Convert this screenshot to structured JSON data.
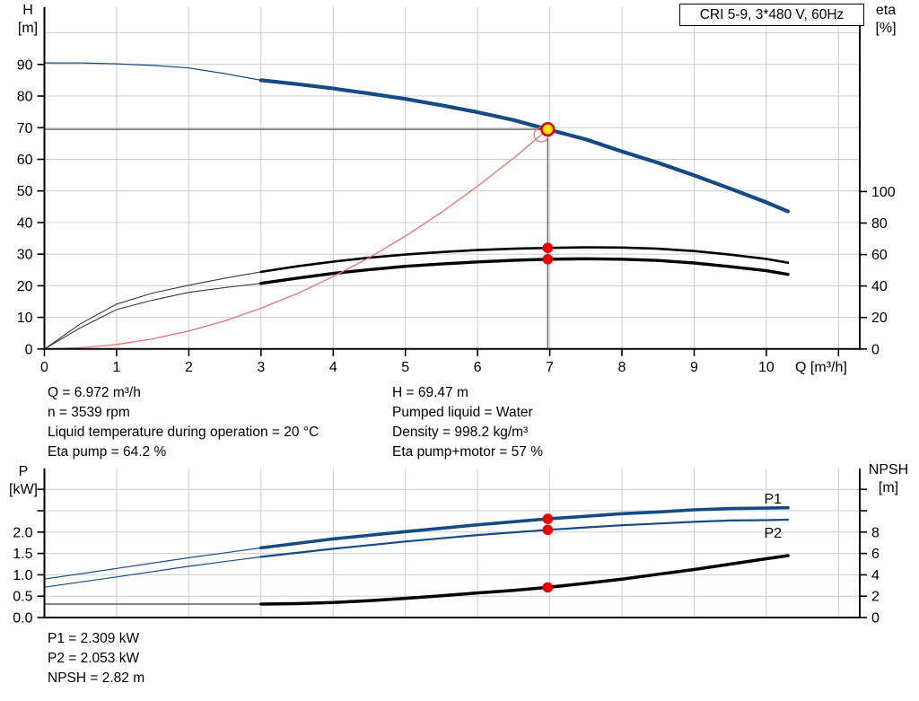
{
  "title_box": "CRI 5-9, 3*480 V, 60Hz",
  "palette": {
    "curve_blue": "#154a82",
    "curve_black": "#000000",
    "thin_dark": "#3a3a3a",
    "system_red": "#e87070",
    "duty_red": "#e00000",
    "duty_yellow": "#ffe600",
    "dot_red": "#ee0000",
    "grid": "#cccccc",
    "axis": "#000000",
    "duty_line": "#4d4d4d"
  },
  "annotations": {
    "top_left": [
      "Q = 6.972 m³/h",
      "n = 3539 rpm",
      "Liquid temperature during operation = 20 °C",
      "Eta pump = 64.2 %"
    ],
    "top_right": [
      "H = 69.47 m",
      "Pumped liquid = Water",
      "Density = 998.2 kg/m³",
      "Eta pump+motor = 57 %"
    ],
    "bottom": [
      "P1 = 2.309 kW",
      "P2 = 2.053 kW",
      "NPSH = 2.82 m"
    ]
  },
  "chart_data": [
    {
      "id": "hq-eta-chart",
      "type": "line",
      "title": "CRI 5-9, 3*480 V, 60Hz",
      "x_axis": {
        "label": "Q [m³/h]",
        "range": [
          0,
          11.3
        ],
        "ticks": [
          {
            "v": 0,
            "label": "0"
          },
          {
            "v": 1,
            "label": "1"
          },
          {
            "v": 2,
            "label": "2"
          },
          {
            "v": 3,
            "label": "3"
          },
          {
            "v": 4,
            "label": "4"
          },
          {
            "v": 5,
            "label": "5"
          },
          {
            "v": 6,
            "label": "6"
          },
          {
            "v": 7,
            "label": "7"
          },
          {
            "v": 8,
            "label": "8"
          },
          {
            "v": 9,
            "label": "9"
          },
          {
            "v": 10,
            "label": "10"
          },
          {
            "v": 11,
            "label": ""
          }
        ]
      },
      "y_left": {
        "axis": "H",
        "label": [
          "H",
          "[m]"
        ],
        "range": [
          0,
          108
        ],
        "ticks": [
          {
            "v": 0,
            "label": "0"
          },
          {
            "v": 10,
            "label": "10"
          },
          {
            "v": 20,
            "label": "20"
          },
          {
            "v": 30,
            "label": "30"
          },
          {
            "v": 40,
            "label": "40"
          },
          {
            "v": 50,
            "label": "50"
          },
          {
            "v": 60,
            "label": "60"
          },
          {
            "v": 70,
            "label": "70"
          },
          {
            "v": 80,
            "label": "80"
          },
          {
            "v": 90,
            "label": "90"
          }
        ]
      },
      "y_right": {
        "axis": "eta",
        "label": [
          "eta",
          "[%]"
        ],
        "range": [
          0,
          217
        ],
        "ticks": [
          {
            "v": 0,
            "label": "0"
          },
          {
            "v": 20,
            "label": "20"
          },
          {
            "v": 40,
            "label": "40"
          },
          {
            "v": 60,
            "label": "60"
          },
          {
            "v": 80,
            "label": "80"
          },
          {
            "v": 100,
            "label": "100"
          }
        ]
      },
      "grid_x": [
        1,
        2,
        3,
        4,
        5,
        6,
        7,
        8,
        9,
        10,
        11
      ],
      "grid_y": {
        "axis": "H",
        "values": [
          10,
          20,
          30,
          40,
          50,
          60,
          70,
          80,
          90,
          100
        ]
      },
      "duty_point_lines": {
        "q": 6.972,
        "h": 69.47
      },
      "series": [
        {
          "name": "head-curve-thin",
          "axis": "H",
          "color": "curve_blue",
          "width": 1.2,
          "points": [
            [
              0,
              90.5
            ],
            [
              0.5,
              90.5
            ],
            [
              1,
              90.2
            ],
            [
              1.5,
              89.7
            ],
            [
              2,
              88.9
            ],
            [
              2.5,
              87.1
            ],
            [
              3,
              85.0
            ]
          ]
        },
        {
          "name": "head-curve",
          "axis": "H",
          "color": "curve_blue",
          "width": 4.2,
          "points": [
            [
              3,
              85.0
            ],
            [
              3.5,
              83.8
            ],
            [
              4,
              82.4
            ],
            [
              4.5,
              80.8
            ],
            [
              5,
              79.1
            ],
            [
              5.5,
              77.1
            ],
            [
              6,
              74.9
            ],
            [
              6.5,
              72.4
            ],
            [
              6.972,
              69.47
            ],
            [
              7.5,
              66.3
            ],
            [
              8,
              62.5
            ],
            [
              8.5,
              58.9
            ],
            [
              9,
              54.9
            ],
            [
              9.5,
              50.7
            ],
            [
              10,
              46.4
            ],
            [
              10.3,
              43.5
            ]
          ]
        },
        {
          "name": "eta-pump-curve-thin",
          "axis": "eta",
          "color": "thin_dark",
          "width": 1.1,
          "points": [
            [
              0,
              0
            ],
            [
              0.5,
              16
            ],
            [
              1,
              28.5
            ],
            [
              1.5,
              35.5
            ],
            [
              2,
              40.5
            ],
            [
              2.5,
              45
            ],
            [
              3,
              49
            ]
          ]
        },
        {
          "name": "eta-pump-curve",
          "axis": "eta",
          "color": "curve_black",
          "width": 2.6,
          "points": [
            [
              3,
              49
            ],
            [
              3.5,
              52.5
            ],
            [
              4,
              55.5
            ],
            [
              4.5,
              58
            ],
            [
              5,
              60
            ],
            [
              5.5,
              61.6
            ],
            [
              6,
              62.8
            ],
            [
              6.5,
              63.7
            ],
            [
              6.972,
              64.2
            ],
            [
              7.5,
              64.6
            ],
            [
              8,
              64.4
            ],
            [
              8.5,
              63.7
            ],
            [
              9,
              62.2
            ],
            [
              9.5,
              59.9
            ],
            [
              10,
              57.2
            ],
            [
              10.3,
              54.8
            ]
          ]
        },
        {
          "name": "eta-pump-motor-curve-thin",
          "axis": "eta",
          "color": "thin_dark",
          "width": 1.1,
          "points": [
            [
              0,
              0
            ],
            [
              0.5,
              13.5
            ],
            [
              1,
              25
            ],
            [
              1.5,
              31
            ],
            [
              2,
              36
            ],
            [
              2.5,
              39
            ],
            [
              3,
              41.7
            ]
          ]
        },
        {
          "name": "eta-pump-motor-curve",
          "axis": "eta",
          "color": "curve_black",
          "width": 3.4,
          "points": [
            [
              3,
              41.7
            ],
            [
              3.5,
              45
            ],
            [
              4,
              48
            ],
            [
              4.5,
              50.4
            ],
            [
              5,
              52.5
            ],
            [
              5.5,
              54
            ],
            [
              6,
              55.3
            ],
            [
              6.5,
              56.3
            ],
            [
              6.972,
              57
            ],
            [
              7.5,
              57.3
            ],
            [
              8,
              57
            ],
            [
              8.5,
              56.2
            ],
            [
              9,
              54.6
            ],
            [
              9.5,
              52.3
            ],
            [
              10,
              49.7
            ],
            [
              10.3,
              47.4
            ]
          ]
        },
        {
          "name": "system-curve",
          "axis": "H",
          "color": "system_red",
          "width": 1.3,
          "points": [
            [
              0,
              0
            ],
            [
              0.5,
              0.36
            ],
            [
              1,
              1.43
            ],
            [
              1.5,
              3.2
            ],
            [
              2,
              5.7
            ],
            [
              2.5,
              8.9
            ],
            [
              3,
              12.9
            ],
            [
              3.5,
              17.5
            ],
            [
              4,
              22.9
            ],
            [
              4.5,
              28.9
            ],
            [
              5,
              35.7
            ],
            [
              5.5,
              43.2
            ],
            [
              6,
              51.5
            ],
            [
              6.5,
              60.4
            ],
            [
              6.972,
              69.47
            ]
          ]
        }
      ],
      "markers": [
        {
          "name": "system-curve-open-circle",
          "axis": "H",
          "q": 6.884,
          "v": 67.8,
          "r": 8,
          "fill": "none",
          "stroke": "system_red",
          "sw": 1.3
        },
        {
          "name": "duty-point-marker",
          "axis": "H",
          "q": 6.972,
          "v": 69.47,
          "r": 6.8,
          "fill": "duty_yellow",
          "stroke": "duty_red",
          "sw": 2.6,
          "interactable": true
        },
        {
          "name": "eta-pump-duty-dot",
          "axis": "eta",
          "q": 6.972,
          "v": 64.2,
          "r": 5.8,
          "fill": "dot_red"
        },
        {
          "name": "eta-pump-motor-duty-dot",
          "axis": "eta",
          "q": 6.972,
          "v": 57,
          "r": 5.8,
          "fill": "dot_red"
        }
      ],
      "duty_values": {
        "Q": "6.972 m³/h",
        "H": "69.47 m",
        "eta_pump": "64.2 %",
        "eta_pump_motor": "57 %"
      }
    },
    {
      "id": "power-npsh-chart",
      "type": "line",
      "x_axis": {
        "range": [
          0,
          11.3
        ]
      },
      "y_left": {
        "axis": "P",
        "label": [
          "P",
          "[kW]"
        ],
        "range": [
          0,
          3.49
        ],
        "ticks": [
          {
            "v": 0,
            "label": "0.0"
          },
          {
            "v": 0.5,
            "label": "0.5"
          },
          {
            "v": 1,
            "label": "1.0"
          },
          {
            "v": 1.5,
            "label": "1.5"
          },
          {
            "v": 2,
            "label": "2.0"
          },
          {
            "v": 2.5,
            "label": ""
          },
          {
            "v": 3,
            "label": ""
          }
        ]
      },
      "y_right": {
        "axis": "NPSH",
        "label": [
          "NPSH",
          "[m]"
        ],
        "range": [
          0,
          13.9
        ],
        "ticks": [
          {
            "v": 0,
            "label": "0"
          },
          {
            "v": 2,
            "label": "2"
          },
          {
            "v": 4,
            "label": "4"
          },
          {
            "v": 6,
            "label": "6"
          },
          {
            "v": 8,
            "label": "8"
          },
          {
            "v": 10,
            "label": ""
          },
          {
            "v": 12,
            "label": ""
          }
        ]
      },
      "grid_x": [
        1,
        2,
        3,
        4,
        5,
        6,
        7,
        8,
        9,
        10,
        11
      ],
      "grid_y": {
        "axis": "P",
        "values": [
          0.5,
          1,
          1.5,
          2,
          2.5,
          3
        ]
      },
      "series": [
        {
          "name": "p1-curve-thin",
          "axis": "P",
          "color": "curve_blue",
          "width": 1.2,
          "points": [
            [
              0,
              0.9
            ],
            [
              1,
              1.15
            ],
            [
              2,
              1.4
            ],
            [
              3,
              1.63
            ]
          ]
        },
        {
          "name": "p1-curve",
          "axis": "P",
          "color": "curve_blue",
          "width": 3.6,
          "points": [
            [
              3,
              1.63
            ],
            [
              4,
              1.84
            ],
            [
              5,
              2.01
            ],
            [
              6,
              2.17
            ],
            [
              6.972,
              2.309
            ],
            [
              7.5,
              2.37
            ],
            [
              8,
              2.43
            ],
            [
              8.5,
              2.47
            ],
            [
              9,
              2.52
            ],
            [
              9.5,
              2.55
            ],
            [
              10,
              2.56
            ],
            [
              10.3,
              2.57
            ]
          ]
        },
        {
          "name": "p2-curve-thin",
          "axis": "P",
          "color": "curve_blue",
          "width": 1.2,
          "points": [
            [
              0,
              0.71
            ],
            [
              1,
              0.95
            ],
            [
              2,
              1.2
            ],
            [
              3,
              1.42
            ]
          ]
        },
        {
          "name": "p2-curve",
          "axis": "P",
          "color": "curve_blue",
          "width": 2.2,
          "points": [
            [
              3,
              1.42
            ],
            [
              4,
              1.61
            ],
            [
              5,
              1.78
            ],
            [
              6,
              1.93
            ],
            [
              6.972,
              2.053
            ],
            [
              7.5,
              2.11
            ],
            [
              8,
              2.16
            ],
            [
              8.5,
              2.2
            ],
            [
              9,
              2.24
            ],
            [
              9.5,
              2.27
            ],
            [
              10,
              2.28
            ],
            [
              10.3,
              2.29
            ]
          ]
        },
        {
          "name": "npsh-curve-thin",
          "axis": "NPSH",
          "color": "thin_dark",
          "width": 1.2,
          "points": [
            [
              0,
              1.26
            ],
            [
              3,
              1.26
            ]
          ]
        },
        {
          "name": "npsh-curve",
          "axis": "NPSH",
          "color": "curve_black",
          "width": 3.5,
          "points": [
            [
              3,
              1.26
            ],
            [
              3.5,
              1.3
            ],
            [
              4,
              1.4
            ],
            [
              4.5,
              1.58
            ],
            [
              5,
              1.8
            ],
            [
              5.5,
              2.03
            ],
            [
              6,
              2.3
            ],
            [
              6.5,
              2.55
            ],
            [
              6.972,
              2.82
            ],
            [
              7.5,
              3.2
            ],
            [
              8,
              3.6
            ],
            [
              8.5,
              4.05
            ],
            [
              9,
              4.5
            ],
            [
              9.5,
              5.0
            ],
            [
              10,
              5.5
            ],
            [
              10.3,
              5.8
            ]
          ]
        }
      ],
      "series_labels": [
        {
          "text": "P1",
          "axis": "P",
          "q": 9.97,
          "v": 2.67,
          "color": "curve_blue"
        },
        {
          "text": "P2",
          "axis": "P",
          "q": 9.97,
          "v": 1.87,
          "color": "curve_blue"
        }
      ],
      "markers": [
        {
          "name": "p1-duty-dot",
          "axis": "P",
          "q": 6.972,
          "v": 2.309,
          "r": 5.8,
          "fill": "dot_red"
        },
        {
          "name": "p2-duty-dot",
          "axis": "P",
          "q": 6.972,
          "v": 2.053,
          "r": 5.8,
          "fill": "dot_red"
        },
        {
          "name": "npsh-duty-dot",
          "axis": "NPSH",
          "q": 6.972,
          "v": 2.82,
          "r": 5.8,
          "fill": "dot_red"
        }
      ],
      "duty_values": {
        "P1": "2.309 kW",
        "P2": "2.053 kW",
        "NPSH": "2.82 m"
      }
    }
  ]
}
